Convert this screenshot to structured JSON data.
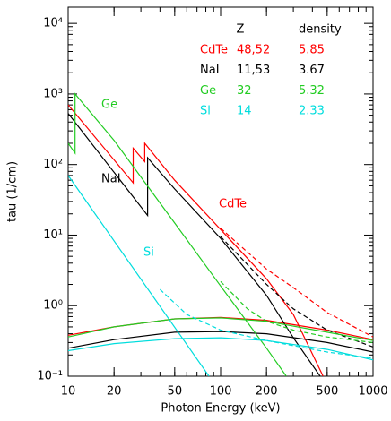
{
  "chart_data": {
    "type": "line",
    "xlabel": "Photon Energy (keV)",
    "ylabel": "tau (1/cm)",
    "log_x": true,
    "log_y": true,
    "xlim": [
      10,
      1000
    ],
    "ylim": [
      0.1,
      17000
    ],
    "xticks": [
      10,
      20,
      50,
      100,
      200,
      500,
      1000
    ],
    "yticks": [
      {
        "value": 0.1,
        "label": "10⁻¹"
      },
      {
        "value": 1,
        "label": "10⁰"
      },
      {
        "value": 10,
        "label": "10¹"
      },
      {
        "value": 100,
        "label": "10²"
      },
      {
        "value": 1000,
        "label": "10³"
      },
      {
        "value": 10000,
        "label": "10⁴"
      }
    ],
    "table_headers": [
      "Z",
      "density"
    ],
    "series": [
      {
        "name": "CdTe",
        "label": "CdTe",
        "color": "#ff0000",
        "Z": "48,52",
        "density": 5.85,
        "x": [
          10,
          26.7,
          26.7,
          31.8,
          31.8,
          50,
          100,
          200,
          300,
          470
        ],
        "values": [
          700,
          55,
          170,
          110,
          200,
          60,
          12,
          2.4,
          0.75,
          0.1
        ],
        "total_x": [
          100,
          200,
          300,
          500,
          1000
        ],
        "total_values": [
          12.5,
          3.3,
          1.8,
          0.8,
          0.36
        ],
        "compton_x": [
          10,
          20,
          50,
          100,
          200,
          500,
          1000
        ],
        "compton_values": [
          0.38,
          0.5,
          0.65,
          0.68,
          0.62,
          0.45,
          0.33
        ]
      },
      {
        "name": "NaI",
        "label": "NaI",
        "color": "#000000",
        "Z": "11,53",
        "density": 3.67,
        "x": [
          10,
          33.2,
          33.2,
          50,
          100,
          200,
          300,
          450
        ],
        "values": [
          530,
          19,
          125,
          45,
          9,
          1.4,
          0.35,
          0.1
        ],
        "total_x": [
          100,
          200,
          300,
          500,
          1000
        ],
        "total_values": [
          9.5,
          2.0,
          0.9,
          0.45,
          0.26
        ],
        "compton_x": [
          10,
          20,
          50,
          100,
          200,
          500,
          1000
        ],
        "compton_values": [
          0.25,
          0.33,
          0.42,
          0.43,
          0.4,
          0.3,
          0.22
        ]
      },
      {
        "name": "Ge",
        "label": "Ge",
        "color": "#22cc22",
        "Z": "32",
        "density": 5.32,
        "x": [
          10,
          11.1,
          11.1,
          20,
          50,
          100,
          200,
          270
        ],
        "values": [
          200,
          145,
          1000,
          220,
          14.8,
          1.9,
          0.25,
          0.1
        ],
        "total_x": [
          100,
          150,
          200,
          300,
          500,
          1000
        ],
        "total_values": [
          2.2,
          0.9,
          0.6,
          0.45,
          0.36,
          0.3
        ],
        "compton_x": [
          10,
          20,
          50,
          100,
          200,
          500,
          1000
        ],
        "compton_values": [
          0.36,
          0.5,
          0.65,
          0.67,
          0.6,
          0.42,
          0.32
        ]
      },
      {
        "name": "Si",
        "label": "Si",
        "color": "#00dddd",
        "Z": "14",
        "density": 2.33,
        "x": [
          10,
          84
        ],
        "values": [
          70,
          0.1
        ],
        "total_x": [
          40,
          60,
          100,
          200,
          500,
          1000
        ],
        "total_values": [
          1.7,
          0.75,
          0.45,
          0.32,
          0.22,
          0.18
        ],
        "compton_x": [
          10,
          20,
          50,
          100,
          200,
          500,
          1000
        ],
        "compton_values": [
          0.23,
          0.29,
          0.34,
          0.35,
          0.32,
          0.24,
          0.17
        ]
      }
    ]
  }
}
